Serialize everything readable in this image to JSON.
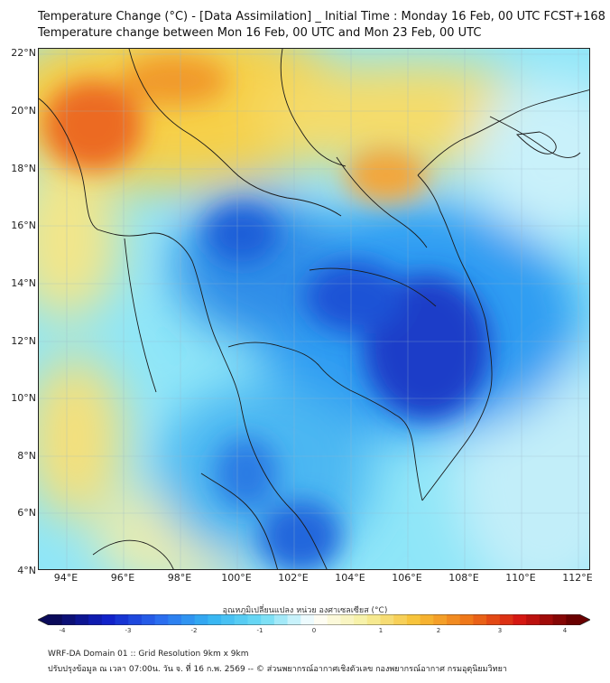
{
  "title": {
    "line1": "Temperature Change (°C) - [Data Assimilation] _ Initial Time : Monday 16 Feb, 00 UTC FCST+168",
    "line2": "Temperature change between Mon 16 Feb, 00 UTC and Mon 23 Feb, 00 UTC"
  },
  "map": {
    "latitude_labels": [
      "22°N",
      "20°N",
      "18°N",
      "16°N",
      "14°N",
      "12°N",
      "10°N",
      "8°N",
      "6°N",
      "4°N"
    ],
    "longitude_labels": [
      "94°E",
      "96°E",
      "98°E",
      "100°E",
      "102°E",
      "104°E",
      "106°E",
      "108°E",
      "110°E",
      "112°E"
    ],
    "lat_range": [
      4,
      22.2
    ],
    "lon_range": [
      93,
      112.4
    ],
    "features": [
      {
        "name": "warm-anomaly-myanmar-north",
        "lon": 95.0,
        "lat": 19.8,
        "value": 2.5
      },
      {
        "name": "warm-anomaly-upper-myanmar",
        "lon": 96.5,
        "lat": 21.0,
        "value": 1.6
      },
      {
        "name": "warm-anomaly-laos",
        "lon": 105.4,
        "lat": 17.6,
        "value": 1.7
      },
      {
        "name": "warm-anomaly-gulf-tonkin",
        "lon": 106.5,
        "lat": 21.0,
        "value": 0.6
      },
      {
        "name": "warm-anomaly-andaman",
        "lon": 94.5,
        "lat": 7.0,
        "value": 1.0
      },
      {
        "name": "warm-anomaly-west-coast",
        "lon": 94.0,
        "lat": 16.0,
        "value": 0.6
      },
      {
        "name": "cold-anomaly-cambodia",
        "lon": 106.4,
        "lat": 12.0,
        "value": -2.4
      },
      {
        "name": "cold-anomaly-tonle-sap",
        "lon": 104.5,
        "lat": 13.6,
        "value": -2.0
      },
      {
        "name": "cold-anomaly-central-thailand",
        "lon": 100.3,
        "lat": 15.8,
        "value": -1.8
      },
      {
        "name": "cold-anomaly-malay-peninsula",
        "lon": 101.5,
        "lat": 6.5,
        "value": -1.6
      },
      {
        "name": "cold-anomaly-south-china-sea",
        "lon": 102.2,
        "lat": 4.6,
        "value": -1.5
      }
    ]
  },
  "colorbar": {
    "title": "อุณหภูมิเปลี่ยนแปลง หน่วย องศาเซลเซียส (°C)",
    "min": -4,
    "max": 4,
    "ticks": [
      "-4",
      "-3",
      "-2",
      "-1",
      "0",
      "1",
      "2",
      "3",
      "4"
    ],
    "colors": [
      "#0a0a5a",
      "#1020c8",
      "#2a6aef",
      "#35b4f2",
      "#6fdcf4",
      "#ffffff",
      "#f6f0a0",
      "#f7c034",
      "#ef7418",
      "#d41612",
      "#6a0000"
    ]
  },
  "footer": {
    "line1": "WRF-DA Domain 01 :: Grid Resolution 9km x 9km",
    "line2": "ปรับปรุงข้อมูล ณ เวลา 07:00น. วัน จ. ที่ 16 ก.พ. 2569 -- © ส่วนพยากรณ์อากาศเชิงตัวเลข กองพยากรณ์อากาศ กรมอุตุนิยมวิทยา"
  }
}
